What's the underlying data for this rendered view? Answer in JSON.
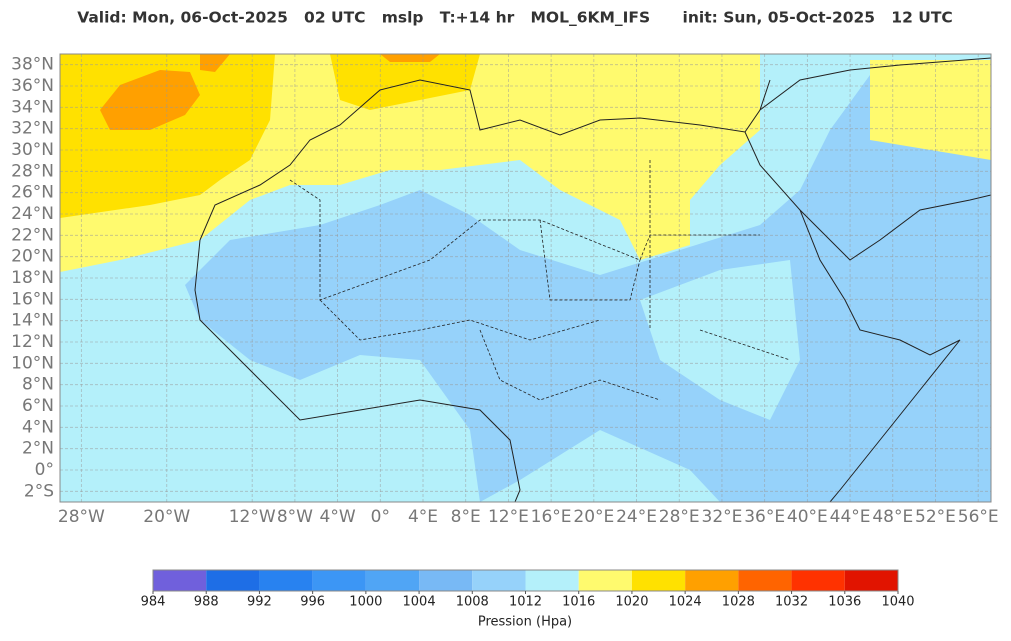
{
  "map": {
    "title": "Valid: Mon, 06-Oct-2025   02 UTC   mslp   T:+14 hr   MOL_6KM_IFS      init: Sun, 05-Oct-2025   12 UTC",
    "xlim": [
      -30,
      57.2
    ],
    "ylim": [
      -3,
      39
    ],
    "xticks": [
      {
        "value": -28,
        "label": "28°W"
      },
      {
        "value": -20,
        "label": "20°W"
      },
      {
        "value": -12,
        "label": "12°W"
      },
      {
        "value": -8,
        "label": "8°W"
      },
      {
        "value": -4,
        "label": "4°W"
      },
      {
        "value": 0,
        "label": "0°"
      },
      {
        "value": 4,
        "label": "4°E"
      },
      {
        "value": 8,
        "label": "8°E"
      },
      {
        "value": 12,
        "label": "12°E"
      },
      {
        "value": 16,
        "label": "16°E"
      },
      {
        "value": 20,
        "label": "20°E"
      },
      {
        "value": 24,
        "label": "24°E"
      },
      {
        "value": 28,
        "label": "28°E"
      },
      {
        "value": 32,
        "label": "32°E"
      },
      {
        "value": 36,
        "label": "36°E"
      },
      {
        "value": 40,
        "label": "40°E"
      },
      {
        "value": 44,
        "label": "44°E"
      },
      {
        "value": 48,
        "label": "48°E"
      },
      {
        "value": 52,
        "label": "52°E"
      },
      {
        "value": 56,
        "label": "56°E"
      }
    ],
    "yticks": [
      {
        "value": 38,
        "label": "38°N"
      },
      {
        "value": 36,
        "label": "36°N"
      },
      {
        "value": 34,
        "label": "34°N"
      },
      {
        "value": 32,
        "label": "32°N"
      },
      {
        "value": 30,
        "label": "30°N"
      },
      {
        "value": 28,
        "label": "28°N"
      },
      {
        "value": 26,
        "label": "26°N"
      },
      {
        "value": 24,
        "label": "24°N"
      },
      {
        "value": 22,
        "label": "22°N"
      },
      {
        "value": 20,
        "label": "20°N"
      },
      {
        "value": 18,
        "label": "18°N"
      },
      {
        "value": 16,
        "label": "16°N"
      },
      {
        "value": 14,
        "label": "14°N"
      },
      {
        "value": 12,
        "label": "12°N"
      },
      {
        "value": 10,
        "label": "10°N"
      },
      {
        "value": 8,
        "label": "8°N"
      },
      {
        "value": 6,
        "label": "6°N"
      },
      {
        "value": 4,
        "label": "4°N"
      },
      {
        "value": 2,
        "label": "2°N"
      },
      {
        "value": 0,
        "label": "0°"
      },
      {
        "value": -2,
        "label": "2°S"
      }
    ],
    "colorbar": {
      "label": "Pression (Hpa)",
      "ticks": [
        984,
        988,
        992,
        996,
        1000,
        1004,
        1008,
        1012,
        1016,
        1020,
        1024,
        1028,
        1032,
        1036,
        1040
      ],
      "colors": [
        "#7060dc",
        "#1e6ee6",
        "#2882f0",
        "#3c96f5",
        "#50a5f5",
        "#78b9f5",
        "#96d2fa",
        "#b4f0fa",
        "#fffa6e",
        "#ffe100",
        "#ffa000",
        "#ff6400",
        "#ff3200",
        "#e11400"
      ]
    }
  }
}
